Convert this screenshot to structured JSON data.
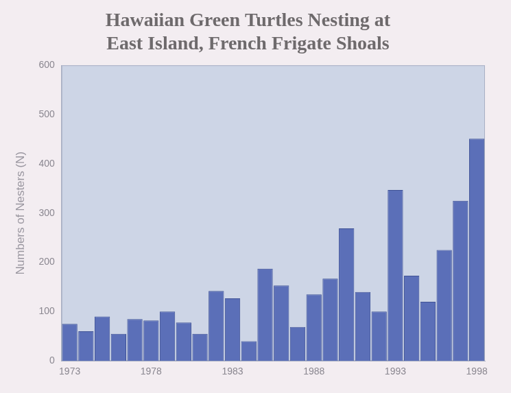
{
  "chart_data": {
    "type": "bar",
    "title": "Hawaiian Green Turtles Nesting at East Island, French Frigate Shoals",
    "y_label": "Numbers of Nesters (N)",
    "categories": [
      "1973",
      null,
      null,
      null,
      null,
      "1978",
      null,
      null,
      null,
      null,
      "1983",
      null,
      null,
      null,
      null,
      "1988",
      null,
      null,
      null,
      null,
      "1993",
      null,
      null,
      null,
      null,
      "1998"
    ],
    "values": [
      75,
      60,
      90,
      55,
      85,
      82,
      100,
      78,
      55,
      142,
      127,
      40,
      187,
      153,
      69,
      135,
      167,
      269,
      140,
      100,
      347,
      173,
      120,
      225,
      325,
      451
    ],
    "color": "#5b6fb8",
    "ylim": [
      0,
      600
    ],
    "yticks": [
      0,
      100,
      200,
      300,
      400,
      500,
      600
    ],
    "grid": false
  }
}
